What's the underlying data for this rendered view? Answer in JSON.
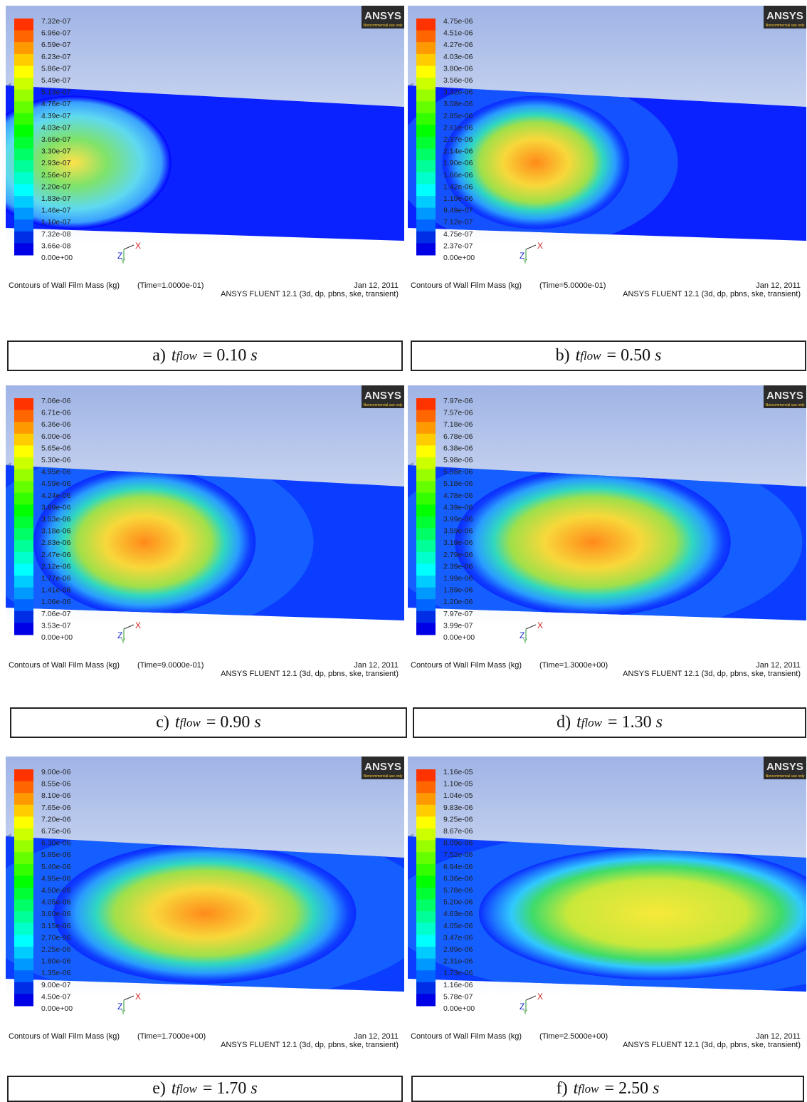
{
  "logo": {
    "brand": "ANSYS",
    "note": "Noncommercial use only"
  },
  "triad": {
    "z": "Z",
    "y": "Y",
    "x": "X"
  },
  "panels": [
    {
      "legend": [
        "7.32e-07",
        "6.96e-07",
        "6.59e-07",
        "6.23e-07",
        "5.86e-07",
        "5.49e-07",
        "5.13e-07",
        "4.76e-07",
        "4.39e-07",
        "4.03e-07",
        "3.66e-07",
        "3.30e-07",
        "2.93e-07",
        "2.56e-07",
        "2.20e-07",
        "1.83e-07",
        "1.46e-07",
        "1.10e-07",
        "7.32e-08",
        "3.66e-08",
        "0.00e+00"
      ],
      "footer": "Contours of Wall Film Mass (kg)",
      "time": "(Time=1.0000e-01)",
      "date": "Jan 12, 2011",
      "solver": "ANSYS FLUENT 12.1 (3d, dp, pbns, ske, transient)",
      "caption": {
        "label": "a)",
        "symbol": "t",
        "sub": "flow",
        "value": "= 0.10",
        "unit": "s"
      }
    },
    {
      "legend": [
        "4.75e-06",
        "4.51e-06",
        "4.27e-06",
        "4.03e-06",
        "3.80e-06",
        "3.56e-06",
        "3.32e-06",
        "3.08e-06",
        "2.85e-06",
        "2.61e-06",
        "2.37e-06",
        "2.14e-06",
        "1.90e-06",
        "1.66e-06",
        "1.42e-06",
        "1.19e-06",
        "9.49e-07",
        "7.12e-07",
        "4.75e-07",
        "2.37e-07",
        "0.00e+00"
      ],
      "footer": "Contours of Wall Film Mass (kg)",
      "time": "(Time=5.0000e-01)",
      "date": "Jan 12, 2011",
      "solver": "ANSYS FLUENT 12.1 (3d, dp, pbns, ske, transient)",
      "caption": {
        "label": "b)",
        "symbol": "t",
        "sub": "flow",
        "value": "= 0.50",
        "unit": "s"
      }
    },
    {
      "legend": [
        "7.06e-06",
        "6.71e-06",
        "6.36e-06",
        "6.00e-06",
        "5.65e-06",
        "5.30e-06",
        "4.95e-06",
        "4.59e-06",
        "4.24e-06",
        "3.89e-06",
        "3.53e-06",
        "3.18e-06",
        "2.83e-06",
        "2.47e-06",
        "2.12e-06",
        "1.77e-06",
        "1.41e-06",
        "1.06e-06",
        "7.06e-07",
        "3.53e-07",
        "0.00e+00"
      ],
      "footer": "Contours of Wall Film Mass (kg)",
      "time": "(Time=9.0000e-01)",
      "date": "Jan 12, 2011",
      "solver": "ANSYS FLUENT 12.1 (3d, dp, pbns, ske, transient)",
      "caption": {
        "label": "c)",
        "symbol": "t",
        "sub": "flow",
        "value": "= 0.90",
        "unit": "s"
      }
    },
    {
      "legend": [
        "7.97e-06",
        "7.57e-06",
        "7.18e-06",
        "6.78e-06",
        "6.38e-06",
        "5.98e-06",
        "5.58e-06",
        "5.18e-06",
        "4.78e-06",
        "4.39e-06",
        "3.99e-06",
        "3.59e-06",
        "3.19e-06",
        "2.79e-06",
        "2.39e-06",
        "1.99e-06",
        "1.59e-06",
        "1.20e-06",
        "7.97e-07",
        "3.99e-07",
        "0.00e+00"
      ],
      "footer": "Contours of Wall Film Mass (kg)",
      "time": "(Time=1.3000e+00)",
      "date": "Jan 12, 2011",
      "solver": "ANSYS FLUENT 12.1 (3d, dp, pbns, ske, transient)",
      "caption": {
        "label": "d)",
        "symbol": "t",
        "sub": "flow",
        "value": "= 1.30",
        "unit": "s"
      }
    },
    {
      "legend": [
        "9.00e-06",
        "8.55e-06",
        "8.10e-06",
        "7.65e-06",
        "7.20e-06",
        "6.75e-06",
        "6.30e-06",
        "5.85e-06",
        "5.40e-06",
        "4.95e-06",
        "4.50e-06",
        "4.05e-06",
        "3.60e-06",
        "3.15e-06",
        "2.70e-06",
        "2.25e-06",
        "1.80e-06",
        "1.35e-06",
        "9.00e-07",
        "4.50e-07",
        "0.00e+00"
      ],
      "footer": "Contours of Wall Film Mass (kg)",
      "time": "(Time=1.7000e+00)",
      "date": "Jan 12, 2011",
      "solver": "ANSYS FLUENT 12.1 (3d, dp, pbns, ske, transient)",
      "caption": {
        "label": "e)",
        "symbol": "t",
        "sub": "flow",
        "value": "= 1.70",
        "unit": "s"
      }
    },
    {
      "legend": [
        "1.16e-05",
        "1.10e-05",
        "1.04e-05",
        "9.83e-06",
        "9.25e-06",
        "8.67e-06",
        "8.09e-06",
        "7.52e-06",
        "6.94e-06",
        "6.36e-06",
        "5.78e-06",
        "5.20e-06",
        "4.63e-06",
        "4.05e-06",
        "3.47e-06",
        "2.89e-06",
        "2.31e-06",
        "1.73e-06",
        "1.16e-06",
        "5.78e-07",
        "0.00e+00"
      ],
      "footer": "Contours of Wall Film Mass (kg)",
      "time": "(Time=2.5000e+00)",
      "date": "Jan 12, 2011",
      "solver": "ANSYS FLUENT 12.1 (3d, dp, pbns, ske, transient)",
      "caption": {
        "label": "f)",
        "symbol": "t",
        "sub": "flow",
        "value": "= 2.50",
        "unit": "s"
      }
    }
  ]
}
